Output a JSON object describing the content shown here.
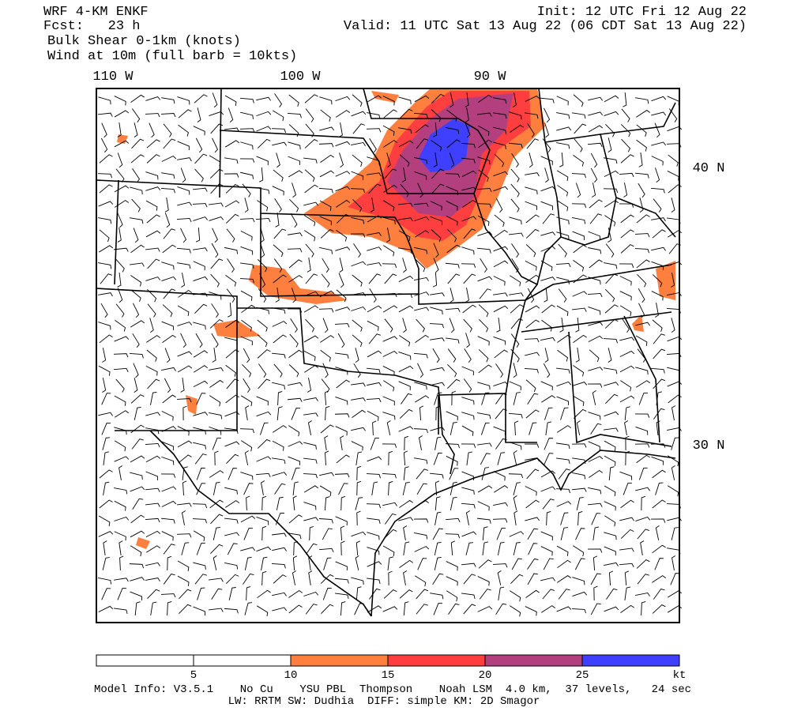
{
  "header": {
    "model": "WRF 4-KM ENKF",
    "forecast": "Fcst:   23 h",
    "field": "Bulk Shear 0-1km (knots)",
    "wind": "Wind at 10m (full barb = 10kts)",
    "init": "Init: 12 UTC Fri 12 Aug 22",
    "valid": "Valid: 11 UTC Sat 13 Aug 22 (06 CDT Sat 13 Aug 22)"
  },
  "map": {
    "longitude_labels": [
      "110 W",
      "100 W",
      "90 W"
    ],
    "latitude_labels": [
      "40 N",
      "30 N"
    ]
  },
  "colorbar": {
    "levels": [
      5,
      10,
      15,
      20,
      25
    ],
    "unit": "kt",
    "colors": [
      "#ffffff",
      "#ffffff",
      "#ff7f3f",
      "#ff3f3f",
      "#b33f7f",
      "#3f3fff"
    ]
  },
  "footer": {
    "line1": "Model Info: V3.5.1    No Cu    YSU PBL  Thompson    Noah LSM  4.0 km,  37 levels,   24 sec",
    "line2": "LW: RRTM SW: Dudhia  DIFF: simple KM: 2D Smagor"
  }
}
